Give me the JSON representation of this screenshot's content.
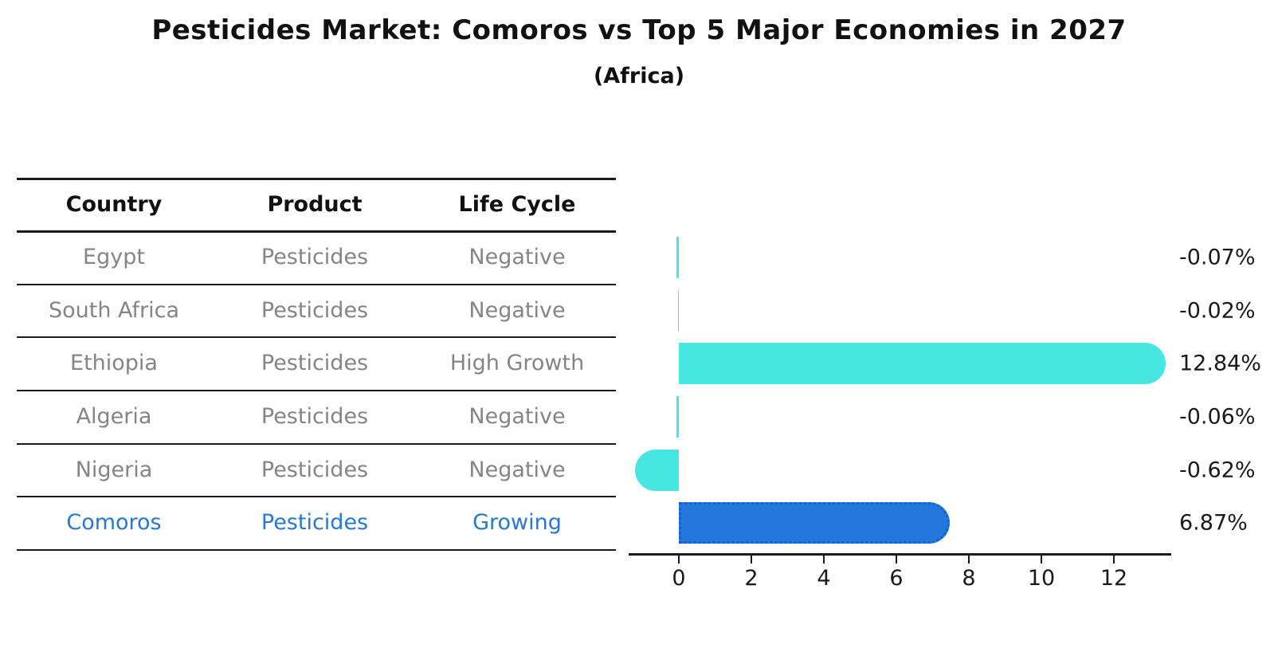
{
  "title": "Pesticides Market: Comoros vs Top 5 Major Economies in 2027",
  "subtitle": "(Africa)",
  "table": {
    "headers": [
      "Country",
      "Product",
      "Life Cycle"
    ],
    "rows": [
      {
        "country": "Egypt",
        "product": "Pesticides",
        "life_cycle": "Negative",
        "highlight": false
      },
      {
        "country": "South Africa",
        "product": "Pesticides",
        "life_cycle": "Negative",
        "highlight": false
      },
      {
        "country": "Ethiopia",
        "product": "Pesticides",
        "life_cycle": "High Growth",
        "highlight": false
      },
      {
        "country": "Algeria",
        "product": "Pesticides",
        "life_cycle": "Negative",
        "highlight": false
      },
      {
        "country": "Nigeria",
        "product": "Pesticides",
        "life_cycle": "Negative",
        "highlight": false
      },
      {
        "country": "Comoros",
        "product": "Pesticides",
        "life_cycle": "Growing",
        "highlight": true
      }
    ]
  },
  "chart_data": {
    "type": "bar",
    "orientation": "horizontal",
    "title": "Pesticides Market: Comoros vs Top 5 Major Economies in 2027 (Africa)",
    "categories": [
      "Egypt",
      "South Africa",
      "Ethiopia",
      "Algeria",
      "Nigeria",
      "Comoros"
    ],
    "values": [
      -0.07,
      -0.02,
      12.84,
      -0.06,
      -0.62,
      6.87
    ],
    "value_labels": [
      "-0.07%",
      "-0.02%",
      "12.84%",
      "-0.06%",
      "-0.62%",
      "6.87%"
    ],
    "unit": "percent",
    "x_ticks": [
      0,
      2,
      4,
      6,
      8,
      10,
      12
    ],
    "xlim": [
      -1.4,
      13.6
    ],
    "grid": false,
    "legend": false,
    "highlight_category": "Comoros",
    "colors": {
      "default_bar": "#48e6e2",
      "highlight_bar": "#2277dc",
      "highlight_bar_border": "#1a5ecb",
      "highlight_text": "#2878d2",
      "text": "#1a1a1a",
      "muted_text": "#858585"
    }
  }
}
